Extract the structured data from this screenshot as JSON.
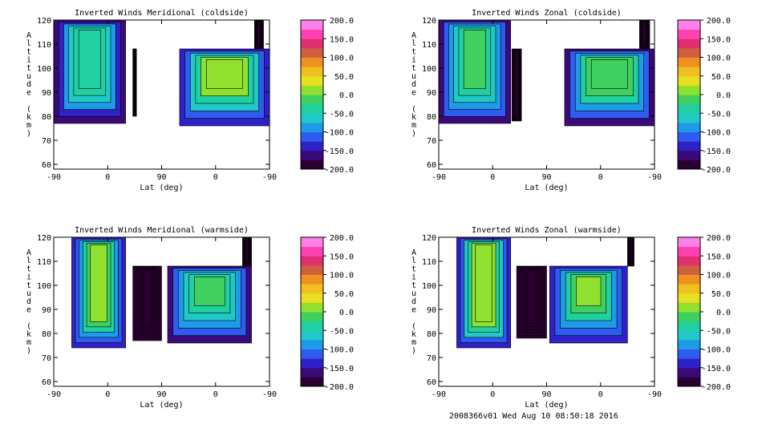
{
  "chart_data": [
    {
      "type": "heatmap",
      "title": "Inverted Winds Meridional (coldside)",
      "xlabel": "Lat (deg)",
      "ylabel": "Altitude (km)",
      "x_ticks": [
        "-90",
        "0",
        "90",
        "0",
        "-90"
      ],
      "y_ticks": [
        60,
        70,
        80,
        90,
        100,
        110,
        120
      ],
      "ylim": [
        58,
        120
      ],
      "colorbar_ticks": [
        "200.0",
        "150.0",
        "100.0",
        "50.0",
        "0.0",
        "-50.0",
        "-100.0",
        "-150.0",
        "-200.0"
      ],
      "colorbar_range": [
        -200,
        200
      ],
      "segments": [
        {
          "x": [
            -90,
            30
          ],
          "alt": [
            77,
            120
          ],
          "mean": -30,
          "top_cut": 120
        },
        {
          "x": [
            42,
            48
          ],
          "alt": [
            80,
            108
          ],
          "mean": -190,
          "top_cut": 108
        },
        {
          "x": [
            120,
            270
          ],
          "alt": [
            76,
            108
          ],
          "mean": 10,
          "top_cut": 108
        },
        {
          "x": [
            245,
            260
          ],
          "alt": [
            108,
            120
          ],
          "mean": -190,
          "top_cut": 120
        }
      ]
    },
    {
      "type": "heatmap",
      "title": "Inverted Winds Zonal (coldside)",
      "xlabel": "Lat (deg)",
      "ylabel": "Altitude (km)",
      "x_ticks": [
        "-90",
        "0",
        "90",
        "0",
        "-90"
      ],
      "y_ticks": [
        60,
        70,
        80,
        90,
        100,
        110,
        120
      ],
      "ylim": [
        58,
        120
      ],
      "colorbar_ticks": [
        "200.0",
        "150.0",
        "100.0",
        "50.0",
        "0.0",
        "-50.0",
        "-100.0",
        "-150.0",
        "-200.0"
      ],
      "colorbar_range": [
        -200,
        200
      ],
      "segments": [
        {
          "x": [
            -90,
            30
          ],
          "alt": [
            77,
            120
          ],
          "mean": -20,
          "top_cut": 120
        },
        {
          "x": [
            32,
            48
          ],
          "alt": [
            78,
            108
          ],
          "mean": -190,
          "top_cut": 108
        },
        {
          "x": [
            120,
            270
          ],
          "alt": [
            76,
            108
          ],
          "mean": -10,
          "top_cut": 108
        },
        {
          "x": [
            245,
            262
          ],
          "alt": [
            108,
            120
          ],
          "mean": -190,
          "top_cut": 120
        }
      ]
    },
    {
      "type": "heatmap",
      "title": "Inverted Winds Meridional (warmside)",
      "xlabel": "Lat (deg)",
      "ylabel": "Altitude (km)",
      "x_ticks": [
        "-90",
        "0",
        "90",
        "0",
        "-90"
      ],
      "y_ticks": [
        60,
        70,
        80,
        90,
        100,
        110,
        120
      ],
      "ylim": [
        58,
        120
      ],
      "colorbar_ticks": [
        "200.0",
        "150.0",
        "100.0",
        "50.0",
        "0.0",
        "-50.0",
        "-100.0",
        "-150.0",
        "-200.0"
      ],
      "colorbar_range": [
        -200,
        200
      ],
      "segments": [
        {
          "x": [
            -60,
            30
          ],
          "alt": [
            74,
            120
          ],
          "mean": 0,
          "top_cut": 120
        },
        {
          "x": [
            42,
            90
          ],
          "alt": [
            77,
            108
          ],
          "mean": -190,
          "top_cut": 108
        },
        {
          "x": [
            100,
            240
          ],
          "alt": [
            76,
            108
          ],
          "mean": -20,
          "top_cut": 108
        },
        {
          "x": [
            225,
            240
          ],
          "alt": [
            108,
            120
          ],
          "mean": -190,
          "top_cut": 120
        }
      ]
    },
    {
      "type": "heatmap",
      "title": "Inverted Winds Zonal (warmside)",
      "xlabel": "Lat (deg)",
      "ylabel": "Altitude (km)",
      "x_ticks": [
        "-90",
        "0",
        "90",
        "0",
        "-90"
      ],
      "y_ticks": [
        60,
        70,
        80,
        90,
        100,
        110,
        120
      ],
      "ylim": [
        58,
        120
      ],
      "colorbar_ticks": [
        "200.0",
        "150.0",
        "100.0",
        "50.0",
        "0.0",
        "-50.0",
        "-100.0",
        "-150.0",
        "-200.0"
      ],
      "colorbar_range": [
        -200,
        200
      ],
      "segments": [
        {
          "x": [
            -60,
            30
          ],
          "alt": [
            74,
            120
          ],
          "mean": 10,
          "top_cut": 120
        },
        {
          "x": [
            40,
            90
          ],
          "alt": [
            78,
            108
          ],
          "mean": -190,
          "top_cut": 108
        },
        {
          "x": [
            95,
            225
          ],
          "alt": [
            76,
            108
          ],
          "mean": 0,
          "top_cut": 108
        },
        {
          "x": [
            225,
            236
          ],
          "alt": [
            108,
            120
          ],
          "mean": -190,
          "top_cut": 120
        }
      ]
    }
  ],
  "colors": {
    "colorbar": [
      "#2a0030",
      "#3a0a7a",
      "#3020c8",
      "#2e5cf0",
      "#1e9be8",
      "#20c8c8",
      "#20d0a0",
      "#40d060",
      "#90e030",
      "#e8e020",
      "#f0c020",
      "#f09020",
      "#d06040",
      "#e03070",
      "#ff40b0",
      "#ff80e8"
    ]
  },
  "footer": "2008366v01 Wed Aug 10 08:50:18 2016"
}
